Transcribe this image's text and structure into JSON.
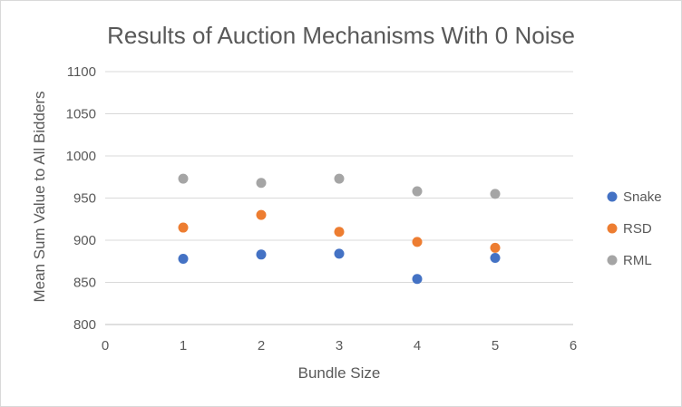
{
  "chart_data": {
    "type": "scatter",
    "title": "Results of Auction Mechanisms With 0 Noise",
    "xlabel": "Bundle Size",
    "ylabel": "Mean Sum Value to All Bidders",
    "xlim": [
      0,
      6
    ],
    "ylim": [
      800,
      1100
    ],
    "x_ticks": [
      0,
      1,
      2,
      3,
      4,
      5,
      6
    ],
    "y_ticks": [
      800,
      850,
      900,
      950,
      1000,
      1050,
      1100
    ],
    "grid": "horizontal",
    "legend_position": "right",
    "series": [
      {
        "name": "Snake",
        "color": "#4472c4",
        "x": [
          1,
          2,
          3,
          4,
          5
        ],
        "y": [
          878,
          883,
          884,
          854,
          879
        ]
      },
      {
        "name": "RSD",
        "color": "#ed7d31",
        "x": [
          1,
          2,
          3,
          4,
          5
        ],
        "y": [
          915,
          930,
          910,
          898,
          891
        ]
      },
      {
        "name": "RML",
        "color": "#a5a5a5",
        "x": [
          1,
          2,
          3,
          4,
          5
        ],
        "y": [
          973,
          968,
          973,
          958,
          955
        ]
      }
    ]
  }
}
